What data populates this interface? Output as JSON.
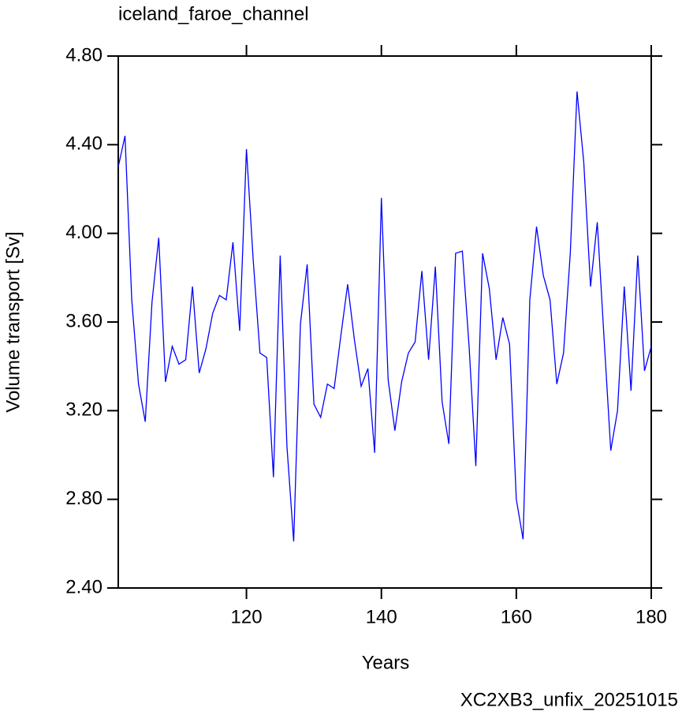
{
  "chart_data": {
    "type": "line",
    "title": "iceland_faroe_channel",
    "xlabel": "Years",
    "ylabel": "Volume transport [Sv]",
    "footer": "XC2XB3_unfix_20251015",
    "x": [
      101,
      102,
      103,
      104,
      105,
      106,
      107,
      108,
      109,
      110,
      111,
      112,
      113,
      114,
      115,
      116,
      117,
      118,
      119,
      120,
      121,
      122,
      123,
      124,
      125,
      126,
      127,
      128,
      129,
      130,
      131,
      132,
      133,
      134,
      135,
      136,
      137,
      138,
      139,
      140,
      141,
      142,
      143,
      144,
      145,
      146,
      147,
      148,
      149,
      150,
      151,
      152,
      153,
      154,
      155,
      156,
      157,
      158,
      159,
      160,
      161,
      162,
      163,
      164,
      165,
      166,
      167,
      168,
      169,
      170,
      171,
      172,
      173,
      174,
      175,
      176,
      177,
      178,
      179,
      180
    ],
    "series": [
      {
        "color": "#0000ff",
        "values": [
          4.3,
          4.44,
          3.7,
          3.32,
          3.15,
          3.69,
          3.98,
          3.33,
          3.49,
          3.41,
          3.43,
          3.76,
          3.37,
          3.48,
          3.64,
          3.72,
          3.7,
          3.96,
          3.56,
          4.38,
          3.88,
          3.46,
          3.44,
          2.9,
          3.9,
          3.04,
          2.61,
          3.59,
          3.86,
          3.23,
          3.17,
          3.32,
          3.3,
          3.54,
          3.77,
          3.52,
          3.31,
          3.39,
          3.01,
          4.16,
          3.34,
          3.11,
          3.33,
          3.46,
          3.51,
          3.83,
          3.43,
          3.85,
          3.24,
          3.05,
          3.91,
          3.92,
          3.49,
          2.95,
          3.91,
          3.75,
          3.43,
          3.62,
          3.5,
          2.8,
          2.62,
          3.7,
          4.03,
          3.81,
          3.7,
          3.32,
          3.46,
          3.91,
          4.64,
          4.32,
          3.76,
          4.05,
          3.53,
          3.02,
          3.2,
          3.76,
          3.29,
          3.9,
          3.38,
          3.49
        ]
      }
    ],
    "xlim": [
      101,
      180
    ],
    "xticks": [
      120,
      140,
      160,
      180
    ],
    "ylim": [
      2.4,
      4.8
    ],
    "yticks": [
      {
        "value": 2.4,
        "label": "2.40"
      },
      {
        "value": 2.8,
        "label": "2.80"
      },
      {
        "value": 3.2,
        "label": "3.20"
      },
      {
        "value": 3.6,
        "label": "3.60"
      },
      {
        "value": 4.0,
        "label": "4.00"
      },
      {
        "value": 4.4,
        "label": "4.40"
      },
      {
        "value": 4.8,
        "label": "4.80"
      }
    ],
    "footer_color": "#0000ff"
  }
}
